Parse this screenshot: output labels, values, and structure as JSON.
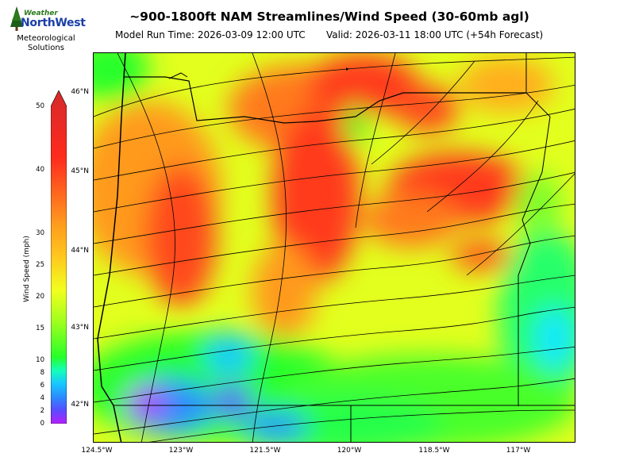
{
  "header": {
    "title": "~900-1800ft NAM Streamlines/Wind Speed (30-60mb agl)",
    "model_run": "Model Run Time: 2026-03-09 12:00 UTC",
    "valid": "Valid: 2026-03-11 18:00 UTC  (+54h Forecast)"
  },
  "logo": {
    "brand_top": "Weather",
    "brand_main": "NorthWest",
    "tagline_line1": "Meteorological",
    "tagline_line2": "Solutions"
  },
  "colorbar": {
    "label": "Wind Speed (mph)",
    "ticks": [
      "0",
      "2",
      "4",
      "6",
      "8",
      "10",
      "15",
      "20",
      "25",
      "30",
      "40",
      "50"
    ],
    "colors": [
      "#b61fff",
      "#5a4cff",
      "#2a8cff",
      "#18c8ff",
      "#15ffb8",
      "#27ff2a",
      "#9aff1e",
      "#f2ff1e",
      "#ffc81e",
      "#ff9a1e",
      "#ff4a1e",
      "#ff1e1e",
      "#d42a2a"
    ]
  },
  "map": {
    "lat_labels": [
      "46°N",
      "45°N",
      "44°N",
      "43°N",
      "42°N"
    ],
    "lon_labels": [
      "124.5°W",
      "123°W",
      "121.5°W",
      "120°W",
      "118.5°W",
      "117°W"
    ]
  }
}
